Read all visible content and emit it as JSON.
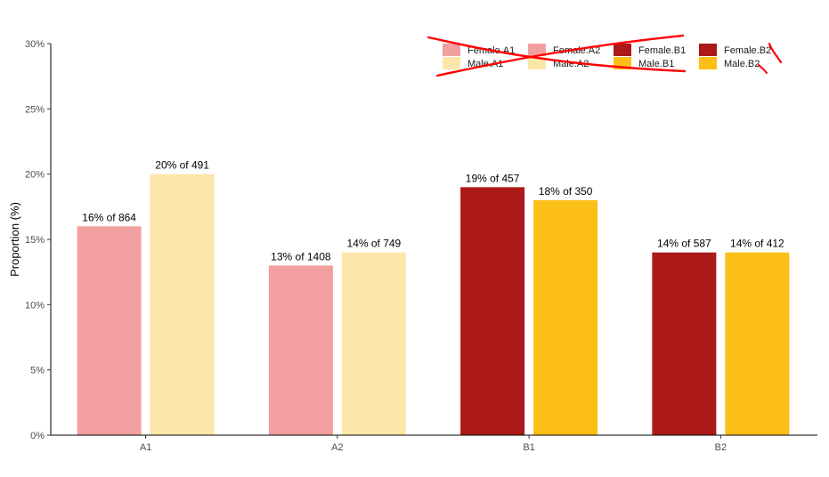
{
  "chart_data": {
    "type": "bar",
    "title": "",
    "xlabel": "",
    "ylabel": "Proportion (%)",
    "ylim": [
      0,
      30
    ],
    "yticks": [
      "0%",
      "5%",
      "10%",
      "15%",
      "20%",
      "25%",
      "30%"
    ],
    "ytick_values": [
      0,
      5,
      10,
      15,
      20,
      25,
      30
    ],
    "categories": [
      "A1",
      "A2",
      "B1",
      "B2"
    ],
    "bars": [
      {
        "category": "A1",
        "value": 16,
        "label": "16% of 864",
        "color": "#F1A09F"
      },
      {
        "category": "A1",
        "value": 20,
        "label": "20% of 491",
        "color": "#FDE6AA"
      },
      {
        "category": "A2",
        "value": 13,
        "label": "13% of 1408",
        "color": "#F1A09F"
      },
      {
        "category": "A2",
        "value": 14,
        "label": "14% of 749",
        "color": "#FDE6AA"
      },
      {
        "category": "B1",
        "value": 19,
        "label": "19% of 457",
        "color": "#AB1A19"
      },
      {
        "category": "B1",
        "value": 18,
        "label": "18% of 350",
        "color": "#FBBF17"
      },
      {
        "category": "B2",
        "value": 14,
        "label": "14% of 587",
        "color": "#AB1A19"
      },
      {
        "category": "B2",
        "value": 14,
        "label": "14% of 412",
        "color": "#FBBF17"
      }
    ],
    "legend": {
      "placement": "top-right",
      "entries": [
        {
          "label": "Female.A1",
          "color": "#F1A09F"
        },
        {
          "label": "Female.A2",
          "color": "#F1A09F"
        },
        {
          "label": "Female.B1",
          "color": "#AB1A19"
        },
        {
          "label": "Female.B2",
          "color": "#AB1A19"
        },
        {
          "label": "Male.A1",
          "color": "#FDE6AA"
        },
        {
          "label": "Male.A2",
          "color": "#FDE6AA"
        },
        {
          "label": "Male.B1",
          "color": "#FBBF17"
        },
        {
          "label": "Male.B2",
          "color": "#FBBF17"
        }
      ]
    },
    "annotation": {
      "description": "red hand-drawn strike-through over legend",
      "color": "#FF0000"
    },
    "grid": false
  }
}
